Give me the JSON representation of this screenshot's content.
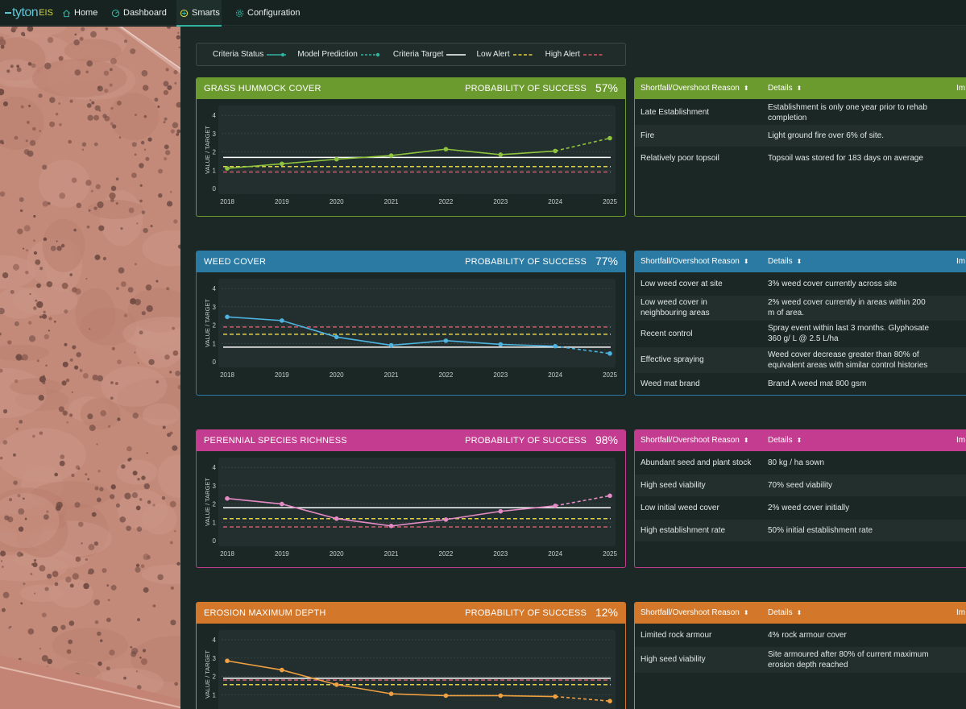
{
  "app": {
    "logo_main": "tyton",
    "logo_suffix": "EIS"
  },
  "nav": [
    {
      "label": "Home",
      "icon": "home-icon"
    },
    {
      "label": "Dashboard",
      "icon": "dashboard-icon"
    },
    {
      "label": "Smarts",
      "icon": "smarts-icon",
      "active": true
    },
    {
      "label": "Configuration",
      "icon": "gear-icon"
    }
  ],
  "legend": [
    {
      "label": "Criteria Status",
      "style": "solid-dot",
      "color": "#2fb39f"
    },
    {
      "label": "Model Prediction",
      "style": "dashed-dot",
      "color": "#2fb39f"
    },
    {
      "label": "Criteria Target",
      "style": "solid",
      "color": "#ffffff"
    },
    {
      "label": "Low Alert",
      "style": "dashed",
      "color": "#e5d23a"
    },
    {
      "label": "High Alert",
      "style": "dashed",
      "color": "#e05566"
    }
  ],
  "probability_label": "PROBABILITY OF SUCCESS",
  "table_headers": {
    "reason": "Shortfall/Overshoot Reason",
    "details": "Details",
    "impact": "Im"
  },
  "panels": [
    {
      "title": "GRASS HUMMOCK COVER",
      "probability": "57%",
      "color": "#6b9a2e",
      "line_color": "#8ec43d",
      "table": [
        {
          "reason": "Late Establishment",
          "details": "Establishment is only one year prior to rehab completion"
        },
        {
          "reason": "Fire",
          "details": "Light ground fire over 6% of site."
        },
        {
          "reason": "Relatively poor topsoil",
          "details": "Topsoil was stored for 183 days on average"
        }
      ]
    },
    {
      "title": "WEED COVER",
      "probability": "77%",
      "color": "#2a7aa3",
      "line_color": "#4db3e0",
      "table": [
        {
          "reason": "Low weed cover at site",
          "details": "3% weed cover currently across site"
        },
        {
          "reason": "Low weed cover in neighbouring areas",
          "details": "2% weed cover currently in areas within 200 m of area."
        },
        {
          "reason": "Recent control",
          "details": "Spray event within last 3 months. Glyphosate 360 g/ L @ 2.5 L/ha"
        },
        {
          "reason": "Effective spraying",
          "details": "Weed cover decrease greater than 80% of equivalent areas with similar control histories"
        },
        {
          "reason": "Weed mat brand",
          "details": "Brand A weed mat 800 gsm"
        }
      ]
    },
    {
      "title": "PERENNIAL SPECIES RICHNESS",
      "probability": "98%",
      "color": "#c43c8f",
      "line_color": "#e68ac6",
      "table": [
        {
          "reason": "Abundant seed and plant stock",
          "details": "80 kg / ha sown"
        },
        {
          "reason": "High seed viability",
          "details": "70% seed viability"
        },
        {
          "reason": "Low initial weed cover",
          "details": "2% weed cover initially"
        },
        {
          "reason": "High establishment rate",
          "details": "50% initial establishment rate"
        }
      ]
    },
    {
      "title": "EROSION MAXIMUM DEPTH",
      "probability": "12%",
      "color": "#d3782a",
      "line_color": "#f0a040",
      "table": [
        {
          "reason": "Limited rock armour",
          "details": "4% rock armour cover"
        },
        {
          "reason": "High seed viability",
          "details": "Site armoured after 80% of current maximum erosion depth reached"
        }
      ]
    }
  ],
  "chart_data": [
    {
      "type": "line",
      "ylabel": "VALUE / TARGET",
      "x": [
        "2018",
        "2019",
        "2020",
        "2021",
        "2022",
        "2023",
        "2024",
        "2025"
      ],
      "yticks": [
        0,
        1,
        2,
        3,
        4
      ],
      "series": [
        {
          "name": "Criteria Status",
          "values": [
            1.1,
            1.35,
            1.6,
            1.8,
            2.15,
            1.85,
            2.05,
            null
          ]
        },
        {
          "name": "Model Prediction",
          "values": [
            null,
            null,
            null,
            null,
            null,
            null,
            2.05,
            2.75
          ]
        }
      ],
      "target": 1.7,
      "low_alert": 1.2,
      "high_alert": 0.9
    },
    {
      "type": "line",
      "ylabel": "VALUE / TARGET",
      "x": [
        "2018",
        "2019",
        "2020",
        "2021",
        "2022",
        "2023",
        "2024",
        "2025"
      ],
      "yticks": [
        0,
        1,
        2,
        3,
        4
      ],
      "series": [
        {
          "name": "Criteria Status",
          "values": [
            2.45,
            2.25,
            1.35,
            0.9,
            1.15,
            0.95,
            0.85,
            null
          ]
        },
        {
          "name": "Model Prediction",
          "values": [
            null,
            null,
            null,
            null,
            null,
            null,
            0.85,
            0.45
          ]
        }
      ],
      "target": 0.8,
      "low_alert": 1.5,
      "high_alert": 1.9
    },
    {
      "type": "line",
      "ylabel": "VALUE / TARGET",
      "x": [
        "2018",
        "2019",
        "2020",
        "2021",
        "2022",
        "2023",
        "2024",
        "2025"
      ],
      "yticks": [
        0,
        1,
        2,
        3,
        4
      ],
      "series": [
        {
          "name": "Criteria Status",
          "values": [
            2.3,
            2.0,
            1.2,
            0.8,
            1.15,
            1.6,
            1.9,
            null
          ]
        },
        {
          "name": "Model Prediction",
          "values": [
            null,
            null,
            null,
            null,
            null,
            null,
            1.9,
            2.45
          ]
        }
      ],
      "target": 1.8,
      "low_alert": 1.2,
      "high_alert": 0.75
    },
    {
      "type": "line",
      "ylabel": "VALUE / TARGET",
      "x": [
        "2018",
        "2019",
        "2020",
        "2021",
        "2022",
        "2023",
        "2024",
        "2025"
      ],
      "yticks": [
        0,
        1,
        2,
        3,
        4
      ],
      "series": [
        {
          "name": "Criteria Status",
          "values": [
            2.85,
            2.35,
            1.55,
            1.05,
            0.95,
            0.95,
            0.9,
            null
          ]
        },
        {
          "name": "Model Prediction",
          "values": [
            null,
            null,
            null,
            null,
            null,
            null,
            0.9,
            0.65
          ]
        }
      ],
      "target": 1.9,
      "low_alert": 1.55,
      "high_alert": 1.8
    }
  ]
}
